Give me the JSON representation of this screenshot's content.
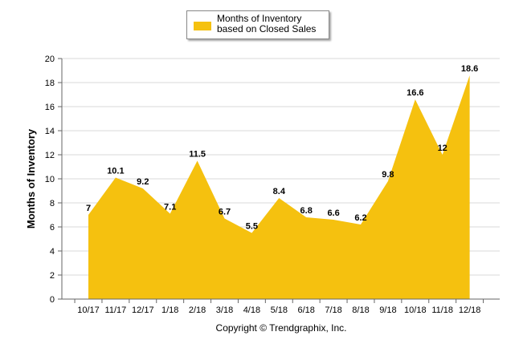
{
  "legend": {
    "label": "Months of Inventory based on Closed Sales"
  },
  "copyright": "Copyright © Trendgraphix, Inc.",
  "colors": {
    "fill": "#F5C10F",
    "grid": "#D9D9D9"
  },
  "chart_data": {
    "type": "area",
    "categories": [
      "10/17",
      "11/17",
      "12/17",
      "1/18",
      "2/18",
      "3/18",
      "4/18",
      "5/18",
      "6/18",
      "7/18",
      "8/18",
      "9/18",
      "10/18",
      "11/18",
      "12/18"
    ],
    "series": [
      {
        "name": "Months of Inventory based on Closed Sales",
        "values": [
          7,
          10.1,
          9.2,
          7.1,
          11.5,
          6.7,
          5.5,
          8.4,
          6.8,
          6.6,
          6.2,
          9.8,
          16.6,
          12,
          18.6
        ]
      }
    ],
    "value_labels": [
      "7",
      "10.1",
      "9.2",
      "7.1",
      "11.5",
      "6.7",
      "5.5",
      "8.4",
      "6.8",
      "6.6",
      "6.2",
      "9.8",
      "16.6",
      "12",
      "18.6"
    ],
    "ylabel": "Months of Inventory",
    "xlabel": "",
    "ylim": [
      0,
      20
    ],
    "yticks": [
      "0",
      "2",
      "4",
      "6",
      "8",
      "10",
      "12",
      "14",
      "16",
      "18",
      "20"
    ],
    "grid": true,
    "legend_position": "top-center"
  }
}
